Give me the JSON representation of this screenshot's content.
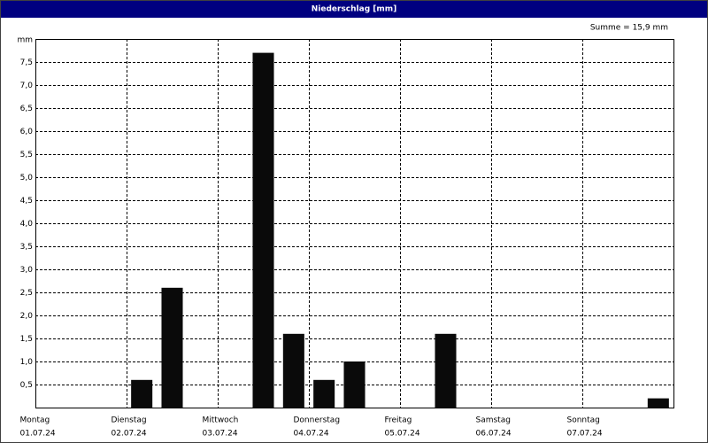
{
  "chart_data": {
    "type": "bar",
    "title": "Niederschlag [mm]",
    "y_label": "mm",
    "annotation": "Summe = 15,9 mm",
    "categories": [
      {
        "day": "Montag",
        "date": "01.07.24"
      },
      null,
      null,
      {
        "day": "Dienstag",
        "date": "02.07.24"
      },
      null,
      null,
      {
        "day": "Mittwoch",
        "date": "03.07.24"
      },
      null,
      null,
      {
        "day": "Donnerstag",
        "date": "04.07.24"
      },
      null,
      null,
      {
        "day": "Freitag",
        "date": "05.07.24"
      },
      null,
      null,
      {
        "day": "Samstag",
        "date": "06.07.24"
      },
      null,
      null,
      {
        "day": "Sonntag",
        "date": "07.07.24"
      },
      null,
      null
    ],
    "values": [
      0,
      0,
      0,
      0.6,
      2.6,
      0,
      0,
      7.7,
      1.6,
      0.6,
      1.0,
      0,
      0,
      1.6,
      0,
      0,
      0,
      0,
      0,
      0,
      0.2
    ],
    "color": "#0a0a0a",
    "ylim": [
      0,
      8
    ],
    "yticks": [
      {
        "value": 0.5,
        "label": "0,5"
      },
      {
        "value": 1.0,
        "label": "1,0"
      },
      {
        "value": 1.5,
        "label": "1,5"
      },
      {
        "value": 2.0,
        "label": "2,0"
      },
      {
        "value": 2.5,
        "label": "2,5"
      },
      {
        "value": 3.0,
        "label": "3,0"
      },
      {
        "value": 3.5,
        "label": "3,5"
      },
      {
        "value": 4.0,
        "label": "4,0"
      },
      {
        "value": 4.5,
        "label": "4,5"
      },
      {
        "value": 5.0,
        "label": "5,0"
      },
      {
        "value": 5.5,
        "label": "5,5"
      },
      {
        "value": 6.0,
        "label": "6,0"
      },
      {
        "value": 6.5,
        "label": "6,5"
      },
      {
        "value": 7.0,
        "label": "7,0"
      },
      {
        "value": 7.5,
        "label": "7,5"
      }
    ],
    "grid": true
  }
}
